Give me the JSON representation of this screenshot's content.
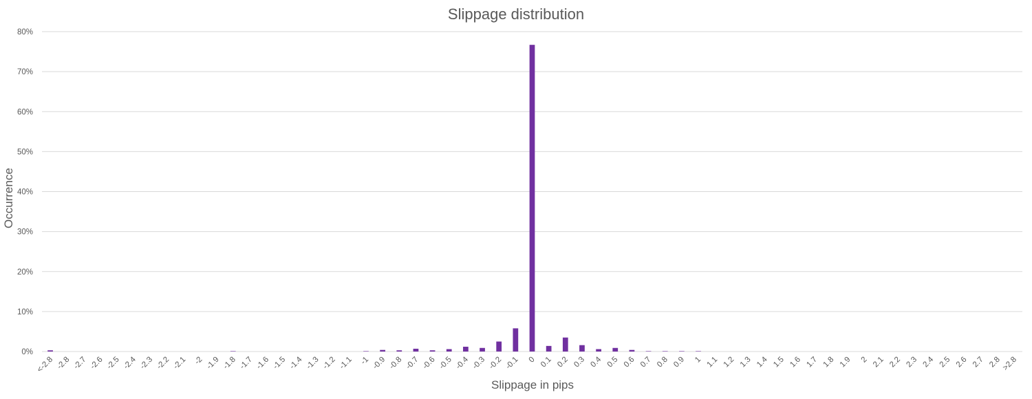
{
  "chart_data": {
    "type": "bar",
    "title": "Slippage distribution",
    "xlabel": "Slippage in pips",
    "ylabel": "Occurrence",
    "ylim": [
      0,
      80
    ],
    "y_ticks": [
      "0%",
      "10%",
      "20%",
      "30%",
      "40%",
      "50%",
      "60%",
      "70%",
      "80%"
    ],
    "grid": true,
    "bar_color": "#7030a0",
    "categories": [
      "<-2.8",
      "-2.8",
      "-2.7",
      "-2.6",
      "-2.5",
      "-2.4",
      "-2.3",
      "-2.2",
      "-2.1",
      "-2",
      "-1.9",
      "-1.8",
      "-1.7",
      "-1.6",
      "-1.5",
      "-1.4",
      "-1.3",
      "-1.2",
      "-1.1",
      "-1",
      "-0.9",
      "-0.8",
      "-0.7",
      "-0.6",
      "-0.5",
      "-0.4",
      "-0.3",
      "-0.2",
      "-0.1",
      "0",
      "0.1",
      "0.2",
      "0.3",
      "0.4",
      "0.5",
      "0.6",
      "0.7",
      "0.8",
      "0.9",
      "1",
      "1.1",
      "1.2",
      "1.3",
      "1.4",
      "1.5",
      "1.6",
      "1.7",
      "1.8",
      "1.9",
      "2",
      "2.1",
      "2.2",
      "2.3",
      "2.4",
      "2.5",
      "2.6",
      "2.7",
      "2.8",
      ">2.8"
    ],
    "values": [
      0.3,
      0,
      0,
      0,
      0,
      0,
      0,
      0,
      0,
      0,
      0,
      0.1,
      0,
      0,
      0,
      0,
      0,
      0,
      0,
      0.1,
      0.4,
      0.3,
      0.7,
      0.3,
      0.6,
      1.2,
      0.9,
      2.5,
      5.8,
      76.7,
      1.4,
      3.5,
      1.6,
      0.6,
      0.9,
      0.4,
      0.1,
      0.1,
      0.1,
      0.1,
      0,
      0,
      0,
      0,
      0,
      0,
      0,
      0,
      0,
      0,
      0,
      0,
      0,
      0,
      0,
      0,
      0,
      0,
      0
    ]
  }
}
